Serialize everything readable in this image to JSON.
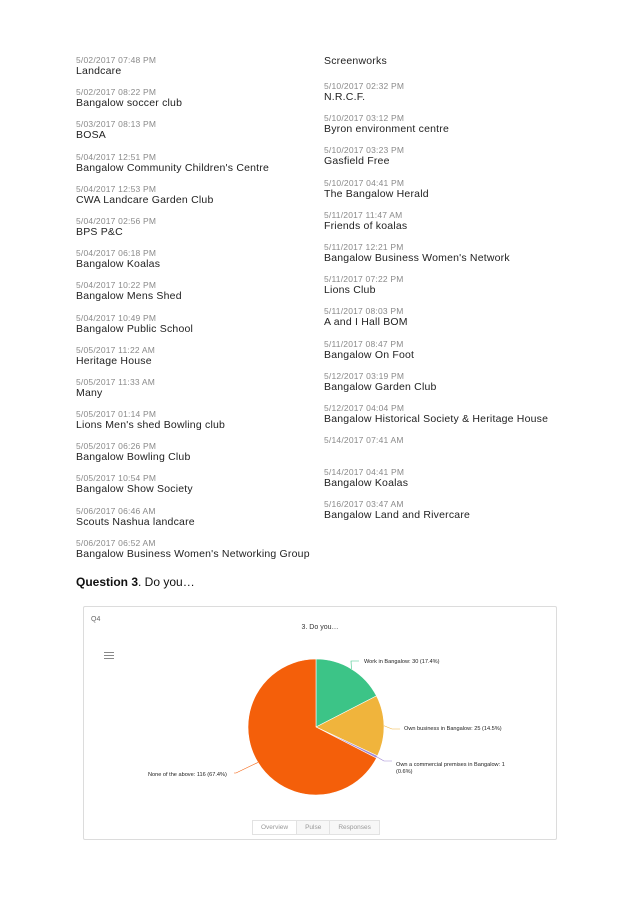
{
  "left_entries": [
    {
      "ts": "5/02/2017 07:48 PM",
      "org": "Landcare"
    },
    {
      "ts": "5/02/2017 08:22 PM",
      "org": "Bangalow soccer club"
    },
    {
      "ts": "5/03/2017 08:13 PM",
      "org": "BOSA"
    },
    {
      "ts": "5/04/2017 12:51 PM",
      "org": "Bangalow Community Children's Centre"
    },
    {
      "ts": "5/04/2017 12:53 PM",
      "org": "CWA Landcare Garden Club"
    },
    {
      "ts": "5/04/2017 02:56 PM",
      "org": "BPS P&C"
    },
    {
      "ts": "5/04/2017 06:18 PM",
      "org": "Bangalow Koalas"
    },
    {
      "ts": "5/04/2017 10:22 PM",
      "org": "Bangalow Mens Shed"
    },
    {
      "ts": "5/04/2017 10:49 PM",
      "org": "Bangalow Public School"
    },
    {
      "ts": "5/05/2017 11:22 AM",
      "org": "Heritage House"
    },
    {
      "ts": "5/05/2017 11:33 AM",
      "org": "Many"
    },
    {
      "ts": "5/05/2017 01:14 PM",
      "org": "Lions Men's shed Bowling club"
    },
    {
      "ts": "5/05/2017 06:26 PM",
      "org": "Bangalow Bowling Club"
    },
    {
      "ts": "5/05/2017 10:54 PM",
      "org": "Bangalow Show Society"
    },
    {
      "ts": "5/06/2017 06:46 AM",
      "org": "Scouts Nashua landcare"
    },
    {
      "ts": "5/06/2017 06:52 AM",
      "org": "Bangalow Business Women's Networking Group"
    }
  ],
  "right_first": "Screenworks",
  "right_entries": [
    {
      "ts": "5/10/2017 02:32 PM",
      "org": "N.R.C.F."
    },
    {
      "ts": "5/10/2017 03:12 PM",
      "org": "Byron environment centre"
    },
    {
      "ts": "5/10/2017 03:23 PM",
      "org": "Gasfield Free"
    },
    {
      "ts": "5/10/2017 04:41 PM",
      "org": "The Bangalow Herald"
    },
    {
      "ts": "5/11/2017 11:47 AM",
      "org": "Friends of koalas"
    },
    {
      "ts": "5/11/2017 12:21 PM",
      "org": "Bangalow Business Women's Network"
    },
    {
      "ts": "5/11/2017 07:22 PM",
      "org": "Lions Club"
    },
    {
      "ts": "5/11/2017 08:03 PM",
      "org": "A and I Hall BOM"
    },
    {
      "ts": "5/11/2017 08:47 PM",
      "org": "Bangalow On Foot"
    },
    {
      "ts": "5/12/2017 03:19 PM",
      "org": "Bangalow Garden Club"
    },
    {
      "ts": "5/12/2017 04:04 PM",
      "org": "Bangalow Historical Society & Heritage House"
    },
    {
      "ts": "5/14/2017 07:41 AM",
      "org": ""
    },
    {
      "ts": "5/14/2017 04:41 PM",
      "org": "Bangalow Koalas"
    },
    {
      "ts": "5/16/2017 03:47 AM",
      "org": "Bangalow Land and Rivercare"
    }
  ],
  "question": {
    "label": "Question 3",
    "text": ". Do you…"
  },
  "panel": {
    "tag": "Q4",
    "tabs": [
      "Overview",
      "Pulse",
      "Responses"
    ]
  },
  "chart_data": {
    "type": "pie",
    "title": "3. Do you…",
    "slices": [
      {
        "name": "Work in Bangalow",
        "value": 30,
        "percent": 17.4,
        "label": "Work in Bangalow: 30 (17.4%)",
        "color": "#3cc487"
      },
      {
        "name": "Own business in Bangalow",
        "value": 25,
        "percent": 14.5,
        "label": "Own business in Bangalow: 25 (14.5%)",
        "color": "#f0b43c"
      },
      {
        "name": "Own a commercial premises in Bangalow",
        "value": 1,
        "percent": 0.6,
        "label": "Own a commercial premises in Bangalow: 1 (0.6%)",
        "color": "#a28ad6"
      },
      {
        "name": "None of the above",
        "value": 116,
        "percent": 67.4,
        "label": "None of the above: 116 (67.4%)",
        "color": "#f45f0a"
      }
    ]
  }
}
